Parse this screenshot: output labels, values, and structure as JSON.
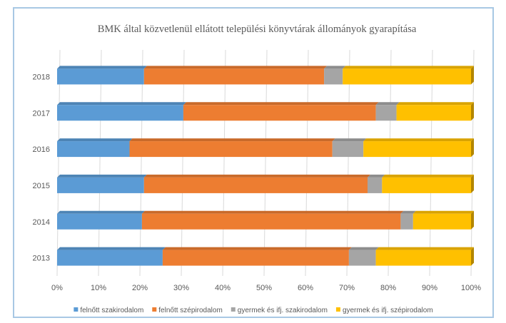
{
  "chart_data": {
    "type": "bar",
    "orientation": "horizontal",
    "stacked": "percent",
    "title": "BMK által közvetlenül ellátott települési könyvtárak állományok gyarapítása",
    "categories": [
      "2013",
      "2014",
      "2015",
      "2016",
      "2017",
      "2018"
    ],
    "series": [
      {
        "name": "felnőtt szakirodalom",
        "color": "#5b9bd5",
        "values": [
          25.5,
          20.5,
          21.0,
          17.5,
          30.5,
          21.0
        ]
      },
      {
        "name": "felnőtt szépirodalom",
        "color": "#ed7d31",
        "values": [
          45.0,
          62.5,
          54.0,
          49.0,
          46.5,
          43.5
        ]
      },
      {
        "name": "gyermek és ifj. szakirodalom",
        "color": "#a5a5a5",
        "values": [
          6.5,
          3.0,
          3.5,
          7.5,
          5.0,
          4.5
        ]
      },
      {
        "name": "gyermek és ifj. szépirodalom",
        "color": "#ffc000",
        "values": [
          23.0,
          14.0,
          21.5,
          26.0,
          18.0,
          31.0
        ]
      }
    ],
    "xticks": [
      "0%",
      "10%",
      "20%",
      "30%",
      "40%",
      "50%",
      "60%",
      "70%",
      "80%",
      "90%",
      "100%"
    ],
    "xlim": [
      0,
      100
    ],
    "grid": true,
    "legend_position": "bottom"
  }
}
